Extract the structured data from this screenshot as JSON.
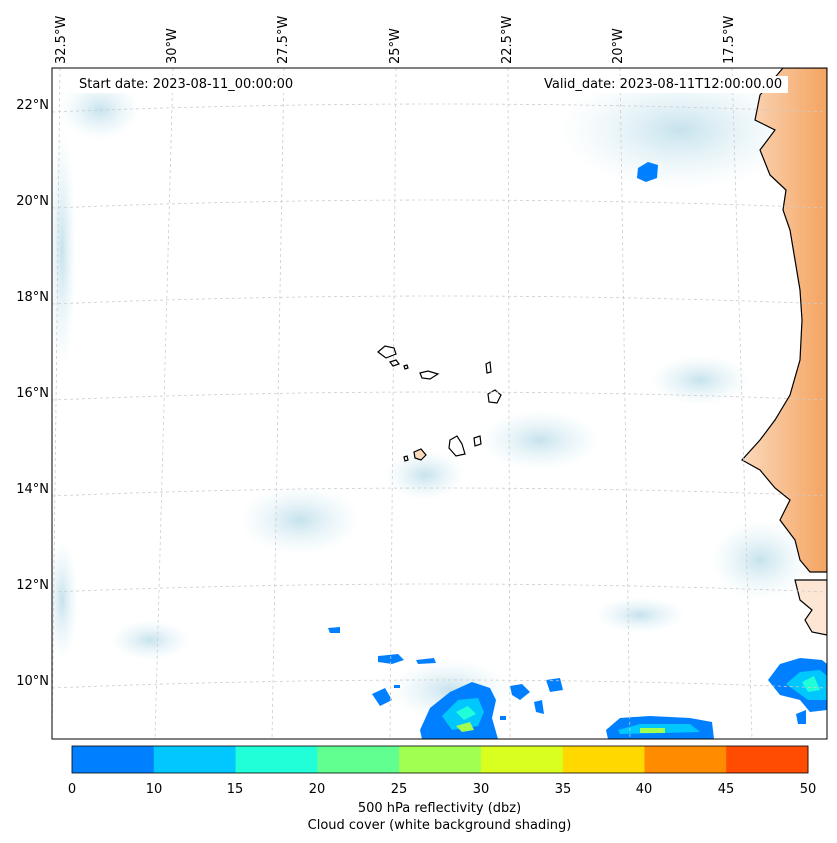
{
  "map": {
    "longitude_labels": [
      "32.5°W",
      "30°W",
      "27.5°W",
      "25°W",
      "22.5°W",
      "20°W",
      "17.5°W"
    ],
    "latitude_labels": [
      "22°N",
      "20°N",
      "18°N",
      "16°N",
      "14°N",
      "12°N",
      "10°N"
    ],
    "start_date": "Start date: 2023-08-11_00:00:00",
    "valid_date": "Valid_date: 2023-08-11T12:00:00.00"
  },
  "colorbar": {
    "ticks": [
      "0",
      "10",
      "15",
      "20",
      "25",
      "30",
      "35",
      "40",
      "45",
      "50"
    ],
    "colors": [
      "#0080ff",
      "#00c8ff",
      "#20ffd8",
      "#60ff90",
      "#a0ff50",
      "#d8ff20",
      "#ffd800",
      "#ff8c00",
      "#ff4c00"
    ],
    "label_line1": "500 hPa reflectivity (dbz)",
    "label_line2": "Cloud cover (white background shading)"
  },
  "colors": {
    "land_shading": "#f4a460",
    "cloud_shading": "#cfe8f0",
    "coastline": "#000000"
  }
}
